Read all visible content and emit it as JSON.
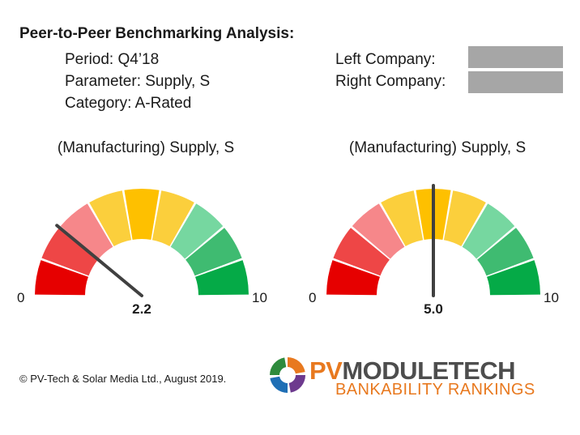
{
  "header": {
    "title": "Peer-to-Peer Benchmarking Analysis:",
    "period": "Period: Q4’18",
    "parameter": "Parameter: Supply, S",
    "category": "Category: A-Rated",
    "left_company_label": "Left Company:",
    "right_company_label": "Right Company:"
  },
  "chart_data": [
    {
      "type": "gauge",
      "title": "(Manufacturing) Supply, S",
      "min_label": "0",
      "max_label": "10",
      "range": [
        0,
        10
      ],
      "value": 2.2,
      "value_label": "2.2",
      "band_colors": [
        "#e60000",
        "#ee4646",
        "#f6878a",
        "#fbcf3c",
        "#fec000",
        "#fbcf3c",
        "#76d7a0",
        "#3fbb71",
        "#05aa47"
      ]
    },
    {
      "type": "gauge",
      "title": "(Manufacturing) Supply, S",
      "min_label": "0",
      "max_label": "10",
      "range": [
        0,
        10
      ],
      "value": 5.0,
      "value_label": "5.0",
      "band_colors": [
        "#e60000",
        "#ee4646",
        "#f6878a",
        "#fbcf3c",
        "#fec000",
        "#fbcf3c",
        "#76d7a0",
        "#3fbb71",
        "#05aa47"
      ]
    }
  ],
  "footer": {
    "copyright": "© PV-Tech & Solar Media Ltd., August 2019.",
    "logo_pv": "PV",
    "logo_moduletech": "MODULETECH",
    "logo_sub": "BANKABILITY RANKINGS",
    "logo_colors": [
      "#e8791f",
      "#2e8b3d",
      "#1f6fb5",
      "#6d3a8e",
      "#4d4d4d"
    ]
  }
}
